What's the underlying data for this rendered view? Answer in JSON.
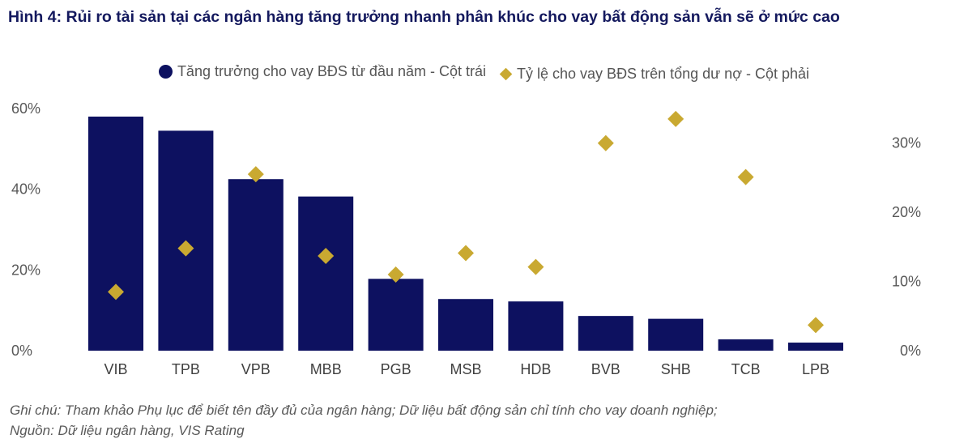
{
  "title": "Hình 4: Rủi ro tài sản tại các ngân hàng tăng trưởng nhanh phân khúc cho vay bất động sản vẫn sẽ ở mức cao",
  "footnote": "Ghi chú: Tham khảo Phụ lục để biết tên đầy đủ của ngân hàng; Dữ liệu bất động sản chỉ tính cho vay doanh nghiệp;",
  "source": "Nguồn: Dữ liệu ngân hàng, VIS Rating",
  "colors": {
    "bar": "#0d1160",
    "marker": "#c9a931",
    "title": "#14195e"
  },
  "chart_data": {
    "type": "bar",
    "categories": [
      "VIB",
      "TPB",
      "VPB",
      "MBB",
      "PGB",
      "MSB",
      "HDB",
      "BVB",
      "SHB",
      "TCB",
      "LPB"
    ],
    "series": [
      {
        "name": "Tăng trưởng cho vay BĐS từ đầu năm - Cột trái",
        "type": "bar",
        "axis": "left",
        "values": [
          58,
          54.5,
          42.5,
          38.2,
          17.8,
          12.8,
          12.2,
          8.6,
          7.9,
          2.8,
          2.0
        ]
      },
      {
        "name": "Tỷ lệ cho vay BĐS trên tổng dư nợ - Cột phải",
        "type": "scatter",
        "axis": "right",
        "values": [
          8.5,
          14.8,
          25.5,
          13.7,
          11.0,
          14.1,
          12.1,
          30.0,
          33.5,
          25.1,
          3.7
        ]
      }
    ],
    "y_left": {
      "ylim": [
        0,
        60
      ],
      "ticks": [
        "0%",
        "20%",
        "40%",
        "60%"
      ],
      "tick_values": [
        0,
        20,
        40,
        60
      ]
    },
    "y_right": {
      "ylim": [
        0,
        35
      ],
      "ticks": [
        "0%",
        "10%",
        "20%",
        "30%"
      ],
      "tick_values": [
        0,
        10,
        20,
        30
      ]
    },
    "grid": false,
    "legend_position": "top-center"
  }
}
